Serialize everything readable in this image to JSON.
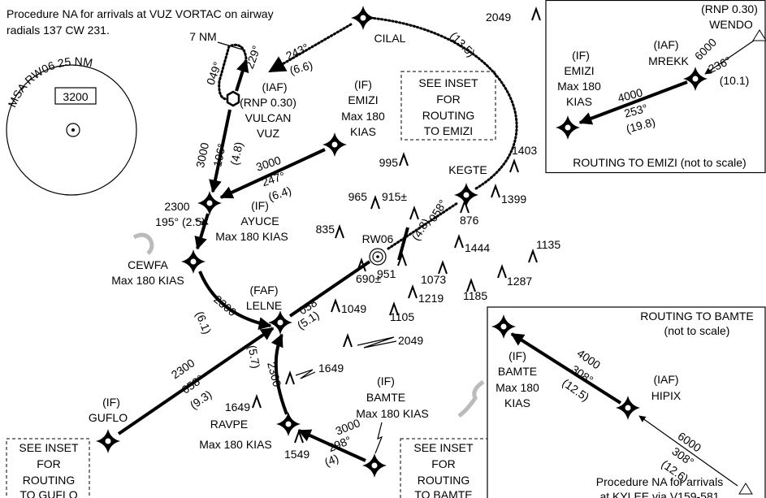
{
  "note": [
    "Procedure NA for arrivals at VUZ VORTAC on airway",
    "radials 137 CW 231."
  ],
  "msa": {
    "title": "MSA RW06 25 NM",
    "altitude": "3200"
  },
  "holding": {
    "distance": "7 NM",
    "inbound": "049°",
    "outbound": "229°"
  },
  "fixes": {
    "vuz": [
      "(IAF)",
      "(RNP 0.30)",
      "VULCAN",
      "VUZ"
    ],
    "cilal": [
      "CILAL"
    ],
    "emizi": [
      "(IF)",
      "EMIZI",
      "Max 180",
      "KIAS"
    ],
    "kegte": [
      "KEGTE"
    ],
    "ayuce": [
      "(IF)",
      "AYUCE",
      "Max 180 KIAS"
    ],
    "rw06": [
      "RW06"
    ],
    "cewfa": [
      "CEWFA",
      "Max 180 KIAS"
    ],
    "lelne": [
      "(FAF)",
      "LELNE"
    ],
    "guflo": [
      "(IF)",
      "GUFLO"
    ],
    "bamte": [
      "(IF)",
      "BAMTE",
      "Max 180 KIAS"
    ],
    "ravpe": [
      "RAVPE",
      "Max 180 KIAS"
    ]
  },
  "legs": {
    "cilal_vuz": [
      "243°",
      "(6.6)"
    ],
    "cilal_kegte": [
      "(13.5)"
    ],
    "vuz_ayuce": [
      "3000",
      "196°",
      "(4.8)"
    ],
    "emizi_ayuce": [
      "3000",
      "247°",
      "(6.4)"
    ],
    "ayuce_cewfa": [
      "2300",
      "195° (2.5)"
    ],
    "kegte_rw06": [
      "058°",
      "(4.8)"
    ],
    "lelne_rw06": [
      "058°",
      "(5.1)"
    ],
    "cewfa_lelne": [
      "2300",
      "(6.1)"
    ],
    "ravpe_lelne": [
      "2300",
      "(5.7)"
    ],
    "guflo_lelne": [
      "2300",
      "058°",
      "(9.3)"
    ],
    "bamte_ravpe": [
      "3000",
      "298°",
      "(4)"
    ]
  },
  "obstacles": [
    "2049",
    "995",
    "1403",
    "965",
    "915±",
    "1399",
    "876",
    "835",
    "1444",
    "1135",
    "951",
    "1073",
    "1287",
    "690±",
    "1219",
    "1185",
    "1049",
    "1105",
    "2049",
    "1649",
    "1649",
    "1549"
  ],
  "inset_refs": {
    "emizi": [
      "SEE INSET",
      "FOR",
      "ROUTING",
      "TO EMIZI"
    ],
    "guflo": [
      "SEE INSET",
      "FOR",
      "ROUTING",
      "TO GUFLO"
    ],
    "bamte": [
      "SEE INSET",
      "FOR",
      "ROUTING",
      "TO BAMTE"
    ]
  },
  "inset_emizi": {
    "wendo": [
      "(RNP 0.30)",
      "WENDO"
    ],
    "mrekk": [
      "(IAF)",
      "MREKK"
    ],
    "emizi": [
      "(IF)",
      "EMIZI",
      "Max 180",
      "KIAS"
    ],
    "leg1": [
      "6000",
      "236°",
      "(10.1)"
    ],
    "leg2": [
      "4000",
      "253°",
      "(19.8)"
    ],
    "caption": "ROUTING TO EMIZI (not to scale)"
  },
  "inset_bamte": {
    "title": [
      "ROUTING TO BAMTE",
      "(not to scale)"
    ],
    "bamte": [
      "(IF)",
      "BAMTE",
      "Max 180",
      "KIAS"
    ],
    "hipix": [
      "(IAF)",
      "HIPIX"
    ],
    "leg1": [
      "4000",
      "308°",
      "(12.5)"
    ],
    "leg2": [
      "6000",
      "308°",
      "(12.6)"
    ],
    "note": [
      "Procedure NA for arrivals",
      "at KYLEE via V159-581"
    ]
  }
}
